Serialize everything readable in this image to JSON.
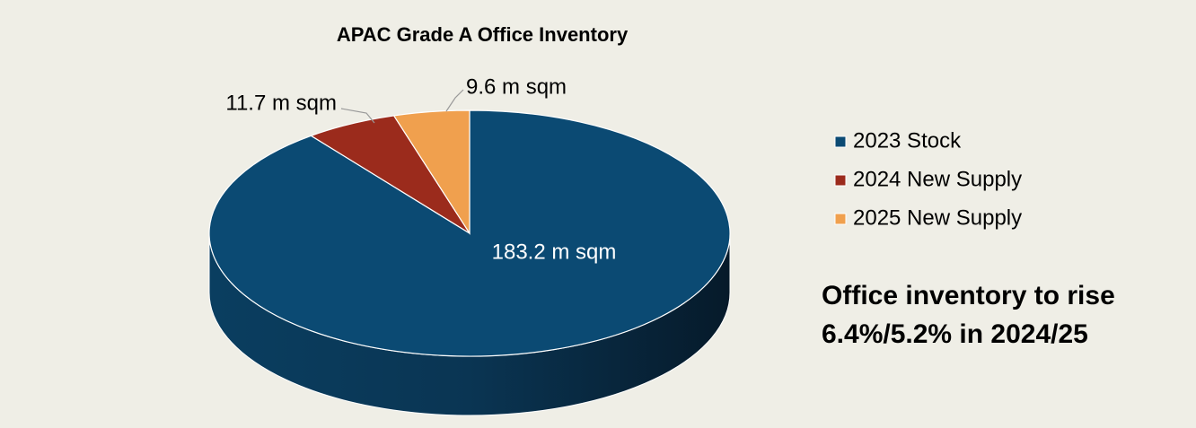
{
  "chart_data": {
    "type": "pie",
    "title": "APAC Grade A Office Inventory",
    "categories": [
      "2023 Stock",
      "2024 New Supply",
      "2025 New Supply"
    ],
    "values": [
      183.2,
      11.7,
      9.6
    ],
    "value_labels": [
      "183.2 m sqm",
      "11.7 m sqm",
      "9.6 m sqm"
    ],
    "colors": [
      "#0b4a73",
      "#9b2b1c",
      "#f0a04e"
    ],
    "legend": "right",
    "annotation": "Office inventory to rise 6.4%/5.2% in 2024/25"
  }
}
